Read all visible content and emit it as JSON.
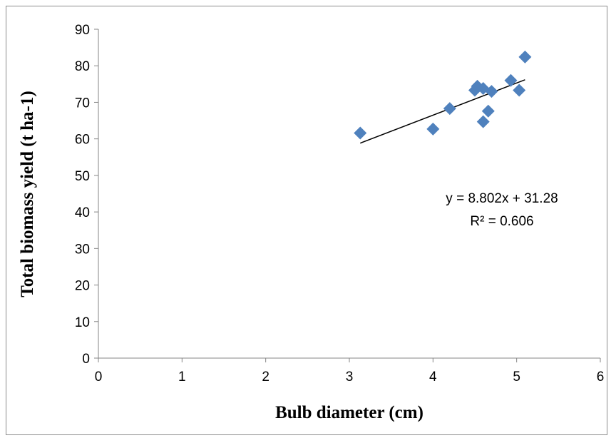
{
  "chart_data": {
    "type": "scatter",
    "title": "",
    "xlabel": "Bulb diameter (cm)",
    "ylabel": "Total biomass yield (t ha-1)",
    "xlim": [
      0,
      6
    ],
    "ylim": [
      0,
      90
    ],
    "xticks": [
      0,
      1,
      2,
      3,
      4,
      5,
      6
    ],
    "yticks": [
      0,
      10,
      20,
      30,
      40,
      50,
      60,
      70,
      80,
      90
    ],
    "grid": false,
    "legend": "none",
    "marker": "diamond",
    "marker_color": "#4f81bd",
    "trendline_color": "#000000",
    "series": [
      {
        "points": [
          [
            3.13,
            61.6
          ],
          [
            4.0,
            62.7
          ],
          [
            4.2,
            68.3
          ],
          [
            4.5,
            73.3
          ],
          [
            4.53,
            74.4
          ],
          [
            4.6,
            64.7
          ],
          [
            4.6,
            73.8
          ],
          [
            4.66,
            67.6
          ],
          [
            4.7,
            73.0
          ],
          [
            4.93,
            76.0
          ],
          [
            5.03,
            73.3
          ],
          [
            5.1,
            82.4
          ]
        ]
      }
    ],
    "trendline": {
      "slope": 8.802,
      "intercept": 31.28,
      "x_range": [
        3.13,
        5.1
      ],
      "equation_text": "y = 8.802x + 31.28",
      "r2_text": "R² = 0.606"
    }
  }
}
